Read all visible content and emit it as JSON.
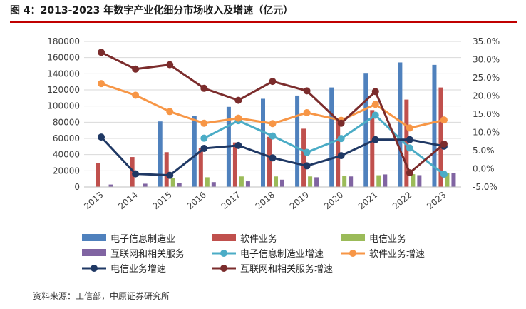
{
  "figure": {
    "title": "图 4：2013-2023 年数字产业化细分市场收入及增速（亿元）",
    "source": "资料来源：工信部，中原证券研究所"
  },
  "chart_data": {
    "type": "bar",
    "categories": [
      "2013",
      "2014",
      "2015",
      "2016",
      "2017",
      "2018",
      "2019",
      "2020",
      "2021",
      "2022",
      "2023"
    ],
    "left_axis": {
      "ylim": [
        0,
        180000
      ],
      "ticks": [
        "0",
        "20000",
        "40000",
        "60000",
        "80000",
        "100000",
        "120000",
        "140000",
        "160000",
        "180000"
      ]
    },
    "right_axis": {
      "ylim": [
        -5,
        35
      ],
      "ticks": [
        "-5.0%",
        "0.0%",
        "5.0%",
        "10.0%",
        "15.0%",
        "20.0%",
        "25.0%",
        "30.0%",
        "35.0%"
      ]
    },
    "grid": true,
    "legend_position": "bottom",
    "bar_series": [
      {
        "name": "电子信息制造业",
        "color": "#4f81bd",
        "values": [
          null,
          null,
          81000,
          88000,
          99000,
          109000,
          113000,
          123000,
          141000,
          154000,
          151000
        ]
      },
      {
        "name": "软件业务",
        "color": "#c0504d",
        "values": [
          30000,
          37000,
          43000,
          48000,
          55000,
          62000,
          72000,
          82000,
          95000,
          108000,
          123000
        ]
      },
      {
        "name": "电信业务",
        "color": "#9bbb59",
        "values": [
          null,
          null,
          11000,
          12000,
          13000,
          13000,
          13000,
          13600,
          14500,
          15800,
          16800
        ]
      },
      {
        "name": "互联网和相关服务",
        "color": "#8064a2",
        "values": [
          3000,
          4000,
          5000,
          6000,
          7000,
          9000,
          12000,
          13000,
          15500,
          14600,
          17500
        ]
      }
    ],
    "line_series": [
      {
        "name": "电子信息制造业增速",
        "color": "#4bacc6",
        "values": [
          null,
          null,
          null,
          8.4,
          13.2,
          9.0,
          4.5,
          8.3,
          14.7,
          5.7,
          -1.5
        ]
      },
      {
        "name": "软件业务增速",
        "color": "#f79646",
        "values": [
          23.4,
          20.2,
          15.7,
          12.5,
          13.9,
          12.4,
          15.4,
          13.3,
          17.7,
          11.2,
          13.4
        ]
      },
      {
        "name": "电信业务增速",
        "color": "#1f3864",
        "values": [
          8.7,
          -1.4,
          -1.8,
          5.6,
          6.4,
          3.0,
          0.8,
          3.6,
          8.0,
          8.0,
          6.2
        ]
      },
      {
        "name": "互联网和相关服务增速",
        "color": "#7b2c2c",
        "values": [
          32.0,
          27.4,
          28.6,
          22.1,
          18.8,
          24.0,
          21.4,
          12.5,
          21.2,
          -1.1,
          6.8
        ]
      }
    ]
  }
}
